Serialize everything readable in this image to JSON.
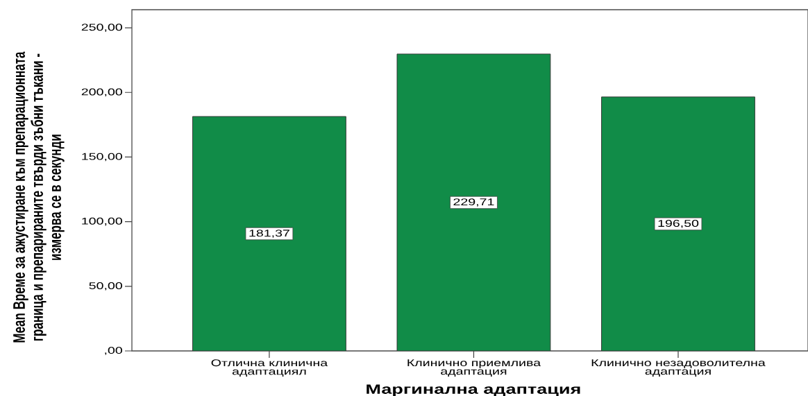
{
  "chart_data": {
    "type": "bar",
    "xlabel": "Маргинална адаптация",
    "ylabel": "Mean Време за ажустиране към препарационната граница и препарираните твърди зъбни тъкани - измерва се в секунди",
    "categories": [
      "Отлична клинична адаптациял",
      "Клинично приемлива адаптация",
      "Клинично незадоволителна адаптация"
    ],
    "values": [
      181.37,
      229.71,
      196.5
    ],
    "value_labels": [
      "181,37",
      "229,71",
      "196,50"
    ],
    "color": "#118c48",
    "ylim": [
      0,
      264
    ],
    "yticks": [
      {
        "value": 0,
        "label": ",00"
      },
      {
        "value": 50,
        "label": "50,00"
      },
      {
        "value": 100,
        "label": "100,00"
      },
      {
        "value": 150,
        "label": "150,00"
      },
      {
        "value": 200,
        "label": "200,00"
      },
      {
        "value": 250,
        "label": "250,00"
      }
    ]
  }
}
